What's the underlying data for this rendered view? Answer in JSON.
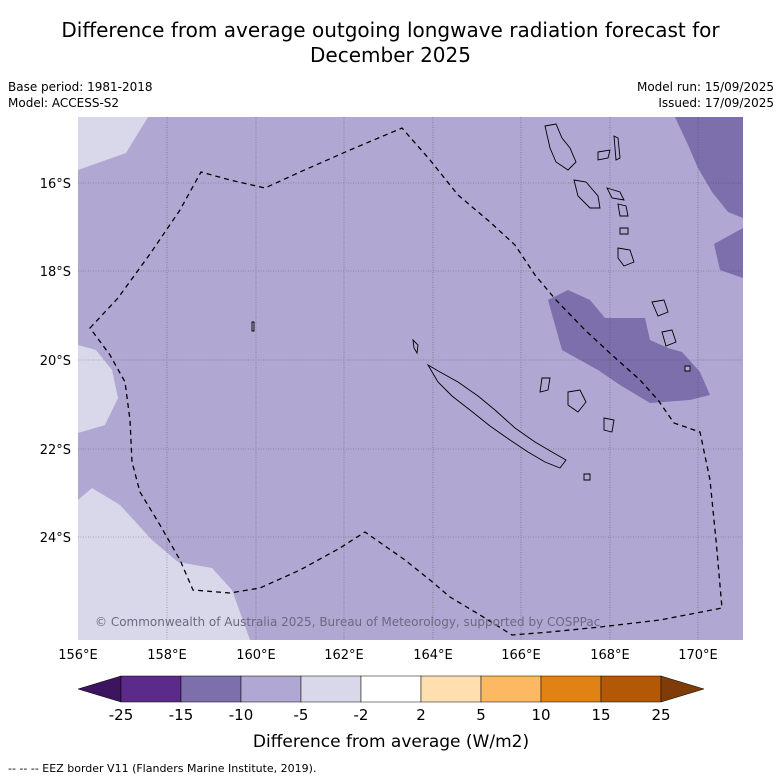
{
  "title_line1": "Difference from average outgoing longwave radiation forecast for",
  "title_line2": "December 2025",
  "base_period": "Base period: 1981-2018",
  "model": "Model: ACCESS-S2",
  "model_run": "Model run: 15/09/2025",
  "issued": "Issued: 17/09/2025",
  "copyright": "© Commonwealth of Australia 2025, Bureau of Meteorology, supported by COSPPac",
  "footer_note": "--  --  -- EEZ border V11 (Flanders Marine Institute, 2019).",
  "map": {
    "lon_range": [
      156,
      171
    ],
    "lat_range": [
      -26.2,
      -14.4
    ],
    "lon_ticks": [
      "156°E",
      "158°E",
      "160°E",
      "162°E",
      "164°E",
      "166°E",
      "168°E",
      "170°E"
    ],
    "lat_ticks": [
      "16°S",
      "18°S",
      "20°S",
      "22°S",
      "24°S"
    ],
    "gridlines": true,
    "border_style": "dashed",
    "border_label": "EEZ border"
  },
  "colorbar": {
    "label": "Difference from average (W/m2)",
    "tick_labels": [
      "-25",
      "-15",
      "-10",
      "-5",
      "-2",
      "2",
      "5",
      "10",
      "15",
      "25"
    ],
    "colors": [
      "#3d1460",
      "#5b2a8a",
      "#7d6eac",
      "#b0a8d2",
      "#d8d8ea",
      "#ffffff",
      "#ffdeb0",
      "#fdb863",
      "#e08214",
      "#b35806",
      "#7f3b08"
    ]
  }
}
